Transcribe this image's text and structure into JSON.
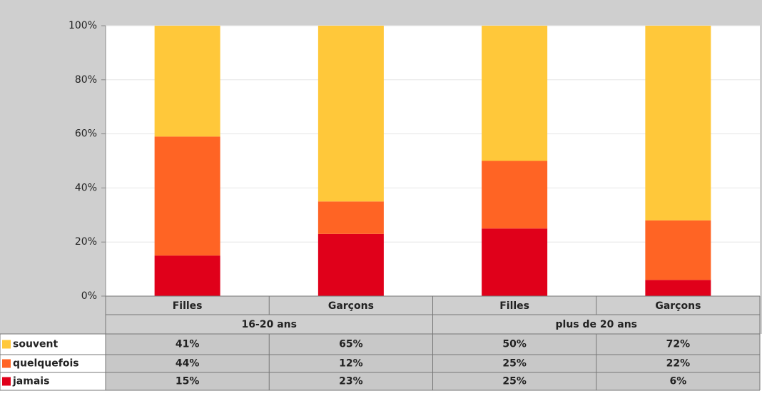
{
  "chart_data": {
    "type": "stacked_bar",
    "categories": [
      "Filles",
      "Garçons",
      "Filles",
      "Garçons"
    ],
    "groups": [
      "16-20 ans",
      "plus de 20 ans"
    ],
    "series": [
      {
        "name": "souvent",
        "color": "#ffc83a",
        "values": [
          41,
          65,
          50,
          72
        ],
        "value_labels": [
          "41%",
          "65%",
          "50%",
          "72%"
        ]
      },
      {
        "name": "quelquefois",
        "color": "#ff6424",
        "values": [
          44,
          12,
          25,
          22
        ],
        "value_labels": [
          "44%",
          "12%",
          "25%",
          "22%"
        ]
      },
      {
        "name": "jamais",
        "color": "#e0001a",
        "values": [
          15,
          23,
          25,
          6
        ],
        "value_labels": [
          "15%",
          "23%",
          "25%",
          "6%"
        ]
      }
    ],
    "ylim": [
      0,
      100
    ],
    "yticks": [
      {
        "value": 0,
        "label": "0%"
      },
      {
        "value": 20,
        "label": "20%"
      },
      {
        "value": 40,
        "label": "40%"
      },
      {
        "value": 60,
        "label": "60%"
      },
      {
        "value": 80,
        "label": "80%"
      },
      {
        "value": 100,
        "label": "100%"
      }
    ],
    "grid": true
  }
}
